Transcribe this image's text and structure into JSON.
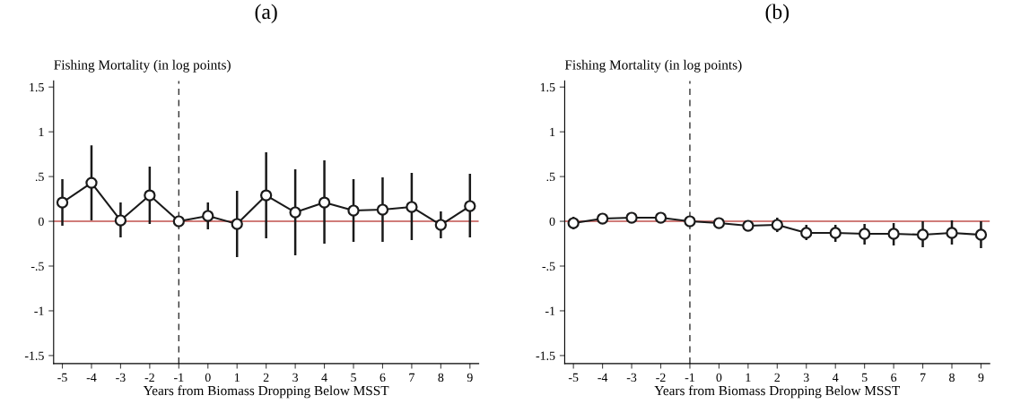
{
  "chart_data": [
    {
      "type": "line",
      "title": "(a)",
      "ylabel": "Fishing Mortality (in log points)",
      "xlabel": "Years from Biomass Dropping Below MSST",
      "x": [
        -5,
        -4,
        -3,
        -2,
        -1,
        0,
        1,
        2,
        3,
        4,
        5,
        6,
        7,
        8,
        9
      ],
      "series": [
        {
          "color": "#1a1a1a",
          "values": [
            0.21,
            0.43,
            0.01,
            0.29,
            0,
            0.06,
            -0.03,
            0.29,
            0.1,
            0.21,
            0.12,
            0.13,
            0.16,
            -0.04,
            0.17
          ],
          "errors": [
            [
              -0.05,
              0.47
            ],
            [
              0.01,
              0.85
            ],
            [
              -0.18,
              0.21
            ],
            [
              -0.03,
              0.61
            ],
            null,
            [
              -0.09,
              0.21
            ],
            [
              -0.4,
              0.34
            ],
            [
              -0.19,
              0.77
            ],
            [
              -0.38,
              0.58
            ],
            [
              -0.25,
              0.68
            ],
            [
              -0.23,
              0.47
            ],
            [
              -0.23,
              0.49
            ],
            [
              -0.21,
              0.54
            ],
            [
              -0.19,
              0.11
            ],
            [
              -0.18,
              0.53
            ]
          ]
        }
      ],
      "xlim": [
        -5.3,
        9.3
      ],
      "xticks": [
        -5,
        -4,
        -3,
        -2,
        -1,
        0,
        1,
        2,
        3,
        4,
        5,
        6,
        7,
        8,
        9
      ],
      "ylim": [
        -1.59,
        1.57
      ],
      "yticks": [
        {
          "value": -1.5,
          "label": "-1.5"
        },
        {
          "value": -1,
          "label": "-1"
        },
        {
          "value": -0.5,
          "label": "-.5"
        },
        0,
        {
          "value": 0.5,
          "label": ".5"
        },
        1,
        {
          "value": 1.5,
          "label": "1.5"
        }
      ],
      "ref_lines": [
        {
          "axis": "y",
          "value": 0,
          "color": "#c0504d",
          "line_style": "solid"
        },
        {
          "axis": "x",
          "value": -1,
          "color": "#333333",
          "line_style": "dashed"
        }
      ],
      "marker": "circle",
      "line_style": "solid",
      "grid": false,
      "legend": false
    },
    {
      "type": "line",
      "title": "(b)",
      "ylabel": "Fishing Mortality (in log points)",
      "xlabel": "Years from Biomass Dropping Below MSST",
      "x": [
        -5,
        -4,
        -3,
        -2,
        -1,
        0,
        1,
        2,
        3,
        4,
        5,
        6,
        7,
        8,
        9
      ],
      "series": [
        {
          "color": "#1a1a1a",
          "values": [
            -0.02,
            0.03,
            0.04,
            0.04,
            0,
            -0.02,
            -0.05,
            -0.04,
            -0.13,
            -0.13,
            -0.14,
            -0.14,
            -0.15,
            -0.13,
            -0.15
          ],
          "errors": [
            [
              -0.09,
              0.05
            ],
            null,
            null,
            null,
            null,
            null,
            null,
            [
              -0.12,
              0.04
            ],
            [
              -0.21,
              -0.04
            ],
            [
              -0.23,
              -0.04
            ],
            [
              -0.26,
              -0.03
            ],
            [
              -0.27,
              -0.02
            ],
            [
              -0.29,
              0
            ],
            [
              -0.26,
              0.01
            ],
            [
              -0.3,
              0
            ]
          ]
        }
      ],
      "xlim": [
        -5.3,
        9.3
      ],
      "xticks": [
        -5,
        -4,
        -3,
        -2,
        -1,
        0,
        1,
        2,
        3,
        4,
        5,
        6,
        7,
        8,
        9
      ],
      "ylim": [
        -1.59,
        1.57
      ],
      "yticks": [
        {
          "value": -1.5,
          "label": "-1.5"
        },
        {
          "value": -1,
          "label": "-1"
        },
        {
          "value": -0.5,
          "label": "-.5"
        },
        0,
        {
          "value": 0.5,
          "label": ".5"
        },
        1,
        {
          "value": 1.5,
          "label": "1.5"
        }
      ],
      "ref_lines": [
        {
          "axis": "y",
          "value": 0,
          "color": "#c0504d",
          "line_style": "solid"
        },
        {
          "axis": "x",
          "value": -1,
          "color": "#333333",
          "line_style": "dashed"
        }
      ],
      "marker": "circle",
      "line_style": "solid",
      "grid": false,
      "legend": false
    }
  ]
}
